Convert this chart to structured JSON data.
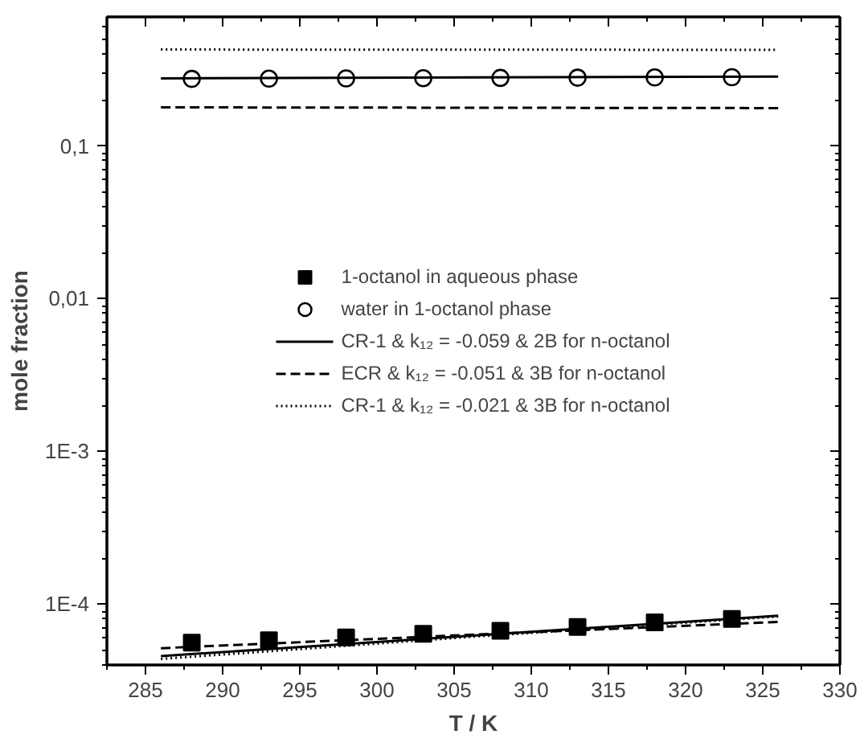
{
  "chart_data": {
    "type": "scatter",
    "xlabel": "T / K",
    "ylabel": "mole fraction",
    "log": "y",
    "grid": false,
    "legend": "center",
    "xlim": [
      282.5,
      330
    ],
    "xticks": [
      285,
      290,
      295,
      300,
      305,
      310,
      315,
      320,
      325,
      330
    ],
    "ylim": [
      4e-05,
      0.7
    ],
    "yticks": [
      {
        "value": 0.0001,
        "label": "1E-4"
      },
      {
        "value": 0.001,
        "label": "1E-3"
      },
      {
        "value": 0.01,
        "label": "0,01"
      },
      {
        "value": 0.1,
        "label": "0,1"
      }
    ],
    "series": [
      {
        "name": "1-octanol in aqueous phase",
        "marker": "square",
        "color": "#000000",
        "x": [
          288,
          293,
          298,
          303,
          308,
          313,
          318,
          323
        ],
        "values": [
          5.6e-05,
          5.8e-05,
          6.05e-05,
          6.4e-05,
          6.7e-05,
          7.1e-05,
          7.6e-05,
          8e-05
        ]
      },
      {
        "name": "water in 1-octanol phase",
        "marker": "circle",
        "color": "#000000",
        "x": [
          288,
          293,
          298,
          303,
          308,
          313,
          318,
          323
        ],
        "values": [
          0.275,
          0.276,
          0.277,
          0.278,
          0.279,
          0.28,
          0.281,
          0.282
        ]
      },
      {
        "name": "CR-1 & k₁₂ = -0.059 & 2B for n-octanol",
        "type": "line",
        "line_style": "solid",
        "marker": "none",
        "color": "#000000",
        "x": [
          286,
          306,
          326
        ],
        "values": [
          0.277,
          0.281,
          0.285
        ]
      },
      {
        "type": "line",
        "line_style": "solid",
        "marker": "none",
        "color": "#000000",
        "x": [
          286,
          306,
          326
        ],
        "values": [
          4.57e-05,
          6.2e-05,
          8.4e-05
        ]
      },
      {
        "name": "ECR & k₁₂ = -0.051 & 3B for n-octanol",
        "type": "line",
        "line_style": "dashed",
        "marker": "none",
        "color": "#000000",
        "x": [
          286,
          306,
          326
        ],
        "values": [
          0.179,
          0.178,
          0.177
        ]
      },
      {
        "type": "line",
        "line_style": "dashed",
        "marker": "none",
        "color": "#000000",
        "x": [
          286,
          306,
          326
        ],
        "values": [
          5.15e-05,
          6.3e-05,
          7.65e-05
        ]
      },
      {
        "name": "CR-1 & k₁₂ = -0.021 & 3B for n-octanol",
        "type": "line",
        "line_style": "dotted",
        "marker": "none",
        "color": "#000000",
        "x": [
          286,
          306,
          326
        ],
        "values": [
          0.428,
          0.427,
          0.426
        ]
      },
      {
        "type": "line",
        "line_style": "dotted",
        "marker": "none",
        "color": "#000000",
        "x": [
          286,
          306,
          326
        ],
        "values": [
          4.38e-05,
          6.1e-05,
          8.3e-05
        ]
      }
    ]
  }
}
